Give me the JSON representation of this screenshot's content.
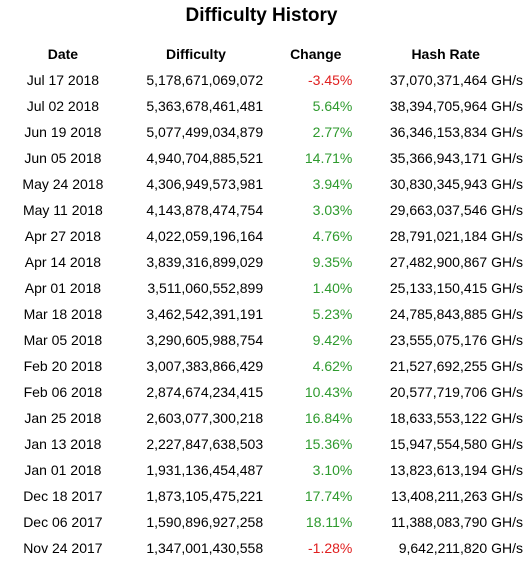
{
  "title": "Difficulty History",
  "headers": {
    "date": "Date",
    "difficulty": "Difficulty",
    "change": "Change",
    "hash_rate": "Hash Rate"
  },
  "colors": {
    "positive": "#2e9a2e",
    "negative": "#e02020"
  },
  "rows": [
    {
      "date": "Jul 17 2018",
      "difficulty": "5,178,671,069,072",
      "change": "-3.45%",
      "hash_rate": "37,070,371,464 GH/s"
    },
    {
      "date": "Jul 02 2018",
      "difficulty": "5,363,678,461,481",
      "change": "5.64%",
      "hash_rate": "38,394,705,964 GH/s"
    },
    {
      "date": "Jun 19 2018",
      "difficulty": "5,077,499,034,879",
      "change": "2.77%",
      "hash_rate": "36,346,153,834 GH/s"
    },
    {
      "date": "Jun 05 2018",
      "difficulty": "4,940,704,885,521",
      "change": "14.71%",
      "hash_rate": "35,366,943,171 GH/s"
    },
    {
      "date": "May 24 2018",
      "difficulty": "4,306,949,573,981",
      "change": "3.94%",
      "hash_rate": "30,830,345,943 GH/s"
    },
    {
      "date": "May 11 2018",
      "difficulty": "4,143,878,474,754",
      "change": "3.03%",
      "hash_rate": "29,663,037,546 GH/s"
    },
    {
      "date": "Apr 27 2018",
      "difficulty": "4,022,059,196,164",
      "change": "4.76%",
      "hash_rate": "28,791,021,184 GH/s"
    },
    {
      "date": "Apr 14 2018",
      "difficulty": "3,839,316,899,029",
      "change": "9.35%",
      "hash_rate": "27,482,900,867 GH/s"
    },
    {
      "date": "Apr 01 2018",
      "difficulty": "3,511,060,552,899",
      "change": "1.40%",
      "hash_rate": "25,133,150,415 GH/s"
    },
    {
      "date": "Mar 18 2018",
      "difficulty": "3,462,542,391,191",
      "change": "5.23%",
      "hash_rate": "24,785,843,885 GH/s"
    },
    {
      "date": "Mar 05 2018",
      "difficulty": "3,290,605,988,754",
      "change": "9.42%",
      "hash_rate": "23,555,075,176 GH/s"
    },
    {
      "date": "Feb 20 2018",
      "difficulty": "3,007,383,866,429",
      "change": "4.62%",
      "hash_rate": "21,527,692,255 GH/s"
    },
    {
      "date": "Feb 06 2018",
      "difficulty": "2,874,674,234,415",
      "change": "10.43%",
      "hash_rate": "20,577,719,706 GH/s"
    },
    {
      "date": "Jan 25 2018",
      "difficulty": "2,603,077,300,218",
      "change": "16.84%",
      "hash_rate": "18,633,553,122 GH/s"
    },
    {
      "date": "Jan 13 2018",
      "difficulty": "2,227,847,638,503",
      "change": "15.36%",
      "hash_rate": "15,947,554,580 GH/s"
    },
    {
      "date": "Jan 01 2018",
      "difficulty": "1,931,136,454,487",
      "change": "3.10%",
      "hash_rate": "13,823,613,194 GH/s"
    },
    {
      "date": "Dec 18 2017",
      "difficulty": "1,873,105,475,221",
      "change": "17.74%",
      "hash_rate": "13,408,211,263 GH/s"
    },
    {
      "date": "Dec 06 2017",
      "difficulty": "1,590,896,927,258",
      "change": "18.11%",
      "hash_rate": "11,388,083,790 GH/s"
    },
    {
      "date": "Nov 24 2017",
      "difficulty": "1,347,001,430,558",
      "change": "-1.28%",
      "hash_rate": "9,642,211,820 GH/s"
    }
  ]
}
